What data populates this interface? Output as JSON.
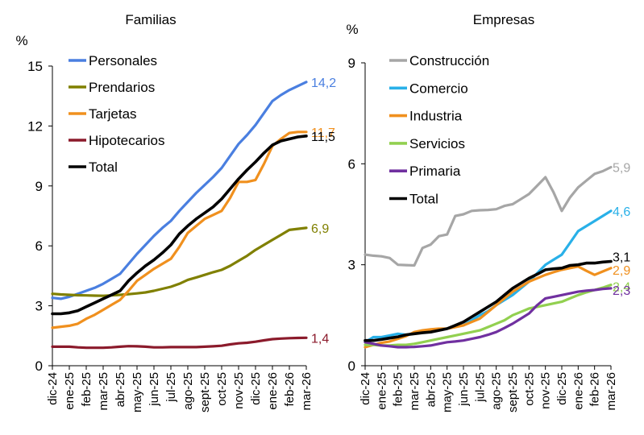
{
  "chart_data": [
    {
      "type": "line",
      "title": "Familias",
      "ylabel": "%",
      "ylim": [
        0,
        15
      ],
      "yticks": [
        0,
        3,
        6,
        9,
        12,
        15
      ],
      "ytick_labels": [
        "0",
        "3",
        "6",
        "9",
        "12",
        "15"
      ],
      "legend_position": "top-left",
      "categories": [
        "dic-24",
        "ene-25",
        "feb-25",
        "mar-25",
        "abr-25",
        "may-25",
        "jun-25",
        "jul-25",
        "ago-25",
        "sept-25",
        "oct-25",
        "nov-25",
        "dic-25",
        "ene-26",
        "feb-26",
        "mar-26"
      ],
      "x": [
        0,
        0.5,
        1,
        1.5,
        2,
        2.5,
        3,
        3.5,
        4,
        4.5,
        5,
        5.5,
        6,
        6.5,
        7,
        7.5,
        8,
        8.5,
        9,
        9.5,
        10,
        10.5,
        11,
        11.5,
        12,
        12.5,
        13,
        13.5,
        14,
        14.5,
        15
      ],
      "series": [
        {
          "name": "Personales",
          "color": "#4a7fe0",
          "end_label": "14,2",
          "values": [
            3.4,
            3.35,
            3.45,
            3.6,
            3.75,
            3.9,
            4.1,
            4.35,
            4.6,
            5.1,
            5.6,
            6.05,
            6.5,
            6.9,
            7.25,
            7.75,
            8.2,
            8.65,
            9.05,
            9.45,
            9.9,
            10.5,
            11.1,
            11.55,
            12.05,
            12.65,
            13.25,
            13.55,
            13.8,
            14.0,
            14.2
          ]
        },
        {
          "name": "Prendarios",
          "color": "#808000",
          "end_label": "6,9",
          "values": [
            3.6,
            3.57,
            3.55,
            3.53,
            3.52,
            3.51,
            3.5,
            3.52,
            3.55,
            3.58,
            3.62,
            3.67,
            3.75,
            3.85,
            3.95,
            4.1,
            4.3,
            4.42,
            4.55,
            4.68,
            4.8,
            5.0,
            5.25,
            5.5,
            5.8,
            6.05,
            6.3,
            6.55,
            6.8,
            6.85,
            6.9
          ]
        },
        {
          "name": "Tarjetas",
          "color": "#f0901e",
          "end_label": "11,7",
          "values": [
            1.9,
            1.95,
            2.0,
            2.1,
            2.35,
            2.55,
            2.8,
            3.05,
            3.3,
            3.75,
            4.25,
            4.55,
            4.85,
            5.1,
            5.35,
            5.95,
            6.65,
            7.0,
            7.35,
            7.55,
            7.75,
            8.4,
            9.2,
            9.2,
            9.3,
            10.1,
            11.0,
            11.35,
            11.65,
            11.7,
            11.7
          ]
        },
        {
          "name": "Hipotecarios",
          "color": "#8b1a2b",
          "end_label": "1,4",
          "values": [
            0.95,
            0.95,
            0.95,
            0.92,
            0.9,
            0.9,
            0.9,
            0.92,
            0.95,
            0.98,
            0.97,
            0.95,
            0.92,
            0.92,
            0.93,
            0.93,
            0.93,
            0.93,
            0.95,
            0.97,
            1.0,
            1.07,
            1.12,
            1.15,
            1.2,
            1.27,
            1.33,
            1.36,
            1.38,
            1.39,
            1.4
          ]
        },
        {
          "name": "Total",
          "color": "#000000",
          "end_label": "11,5",
          "values": [
            2.6,
            2.6,
            2.65,
            2.75,
            2.95,
            3.15,
            3.35,
            3.55,
            3.75,
            4.25,
            4.65,
            5.0,
            5.3,
            5.65,
            6.05,
            6.6,
            7.0,
            7.35,
            7.65,
            7.95,
            8.35,
            8.85,
            9.35,
            9.8,
            10.2,
            10.65,
            11.05,
            11.25,
            11.35,
            11.45,
            11.5
          ]
        }
      ]
    },
    {
      "type": "line",
      "title": "Empresas",
      "ylabel": "%",
      "ylim": [
        0,
        9
      ],
      "yticks": [
        0,
        3,
        6,
        9
      ],
      "ytick_labels": [
        "0",
        "3",
        "6",
        "9"
      ],
      "legend_position": "top-left",
      "categories": [
        "dic-24",
        "ene-25",
        "feb-25",
        "mar-25",
        "abr-25",
        "may-25",
        "jun-25",
        "jul-25",
        "ago-25",
        "sept-25",
        "oct-25",
        "nov-25",
        "dic-25",
        "ene-26",
        "feb-26",
        "mar-26"
      ],
      "x": [
        0,
        0.5,
        1,
        1.5,
        2,
        2.5,
        3,
        3.5,
        4,
        4.5,
        5,
        5.5,
        6,
        6.5,
        7,
        7.5,
        8,
        8.5,
        9,
        9.5,
        10,
        10.5,
        11,
        11.5,
        12,
        12.5,
        13,
        13.5,
        14,
        14.5,
        15
      ],
      "series": [
        {
          "name": "Construcción",
          "color": "#a6a6a6",
          "end_label": "5,9",
          "values": [
            3.3,
            3.27,
            3.25,
            3.2,
            3.0,
            2.99,
            2.98,
            3.5,
            3.6,
            3.85,
            3.9,
            4.45,
            4.5,
            4.6,
            4.62,
            4.63,
            4.65,
            4.75,
            4.8,
            4.95,
            5.1,
            5.35,
            5.6,
            5.15,
            4.6,
            5.0,
            5.3,
            5.5,
            5.7,
            5.78,
            5.9
          ]
        },
        {
          "name": "Comercio",
          "color": "#29b0e8",
          "end_label": "4,6",
          "values": [
            0.7,
            0.85,
            0.85,
            0.9,
            0.95,
            0.92,
            0.95,
            1.0,
            1.0,
            1.05,
            1.1,
            1.18,
            1.2,
            1.35,
            1.5,
            1.62,
            1.8,
            1.95,
            2.1,
            2.3,
            2.5,
            2.75,
            3.0,
            3.15,
            3.3,
            3.65,
            4.0,
            4.15,
            4.3,
            4.45,
            4.6
          ]
        },
        {
          "name": "Industria",
          "color": "#f0901e",
          "end_label": "2,9",
          "values": [
            0.55,
            0.62,
            0.68,
            0.72,
            0.8,
            0.88,
            1.0,
            1.05,
            1.08,
            1.1,
            1.1,
            1.15,
            1.2,
            1.3,
            1.4,
            1.6,
            1.8,
            2.0,
            2.2,
            2.35,
            2.5,
            2.6,
            2.7,
            2.78,
            2.85,
            2.9,
            2.95,
            2.82,
            2.7,
            2.8,
            2.9
          ]
        },
        {
          "name": "Servicios",
          "color": "#92d050",
          "end_label": "2,4",
          "values": [
            0.62,
            0.62,
            0.6,
            0.6,
            0.62,
            0.62,
            0.65,
            0.7,
            0.75,
            0.8,
            0.85,
            0.9,
            0.95,
            1.0,
            1.05,
            1.15,
            1.25,
            1.35,
            1.5,
            1.6,
            1.7,
            1.75,
            1.8,
            1.85,
            1.9,
            2.0,
            2.1,
            2.18,
            2.25,
            2.32,
            2.4
          ]
        },
        {
          "name": "Primaria",
          "color": "#7030a0",
          "end_label": "2,3",
          "values": [
            0.7,
            0.65,
            0.6,
            0.58,
            0.55,
            0.55,
            0.56,
            0.58,
            0.6,
            0.65,
            0.7,
            0.72,
            0.75,
            0.8,
            0.85,
            0.92,
            1.0,
            1.12,
            1.25,
            1.4,
            1.55,
            1.8,
            2.0,
            2.05,
            2.1,
            2.15,
            2.2,
            2.23,
            2.25,
            2.28,
            2.3
          ]
        },
        {
          "name": "Total",
          "color": "#000000",
          "end_label": "3,1",
          "values": [
            0.75,
            0.75,
            0.78,
            0.82,
            0.86,
            0.92,
            0.95,
            0.98,
            1.0,
            1.05,
            1.1,
            1.2,
            1.3,
            1.45,
            1.6,
            1.75,
            1.9,
            2.1,
            2.3,
            2.45,
            2.6,
            2.72,
            2.85,
            2.88,
            2.9,
            2.98,
            3.0,
            3.05,
            3.05,
            3.08,
            3.1
          ]
        }
      ]
    }
  ]
}
